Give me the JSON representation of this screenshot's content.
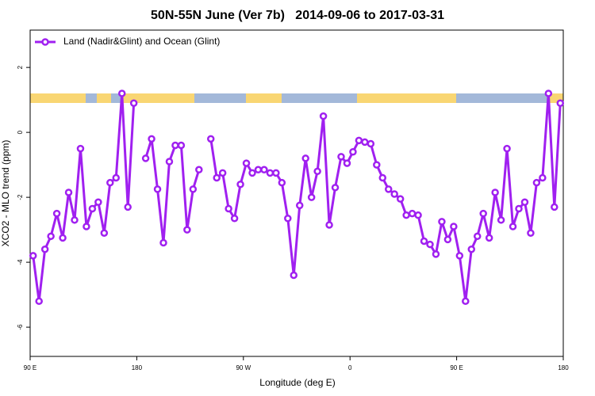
{
  "chart_data": {
    "type": "line",
    "title": "50N-55N June (Ver 7b)   2014-09-06 to 2017-03-31",
    "xlabel": "Longitude (deg E)",
    "ylabel": "XCO2 - MLO trend (ppm)",
    "x": [
      92.5,
      97.5,
      102.5,
      107.5,
      112.5,
      117.5,
      122.5,
      127.5,
      132.5,
      137.5,
      142.5,
      147.5,
      152.5,
      157.5,
      162.5,
      167.5,
      172.5,
      177.5,
      182.5,
      187.5,
      192.5,
      197.5,
      202.5,
      207.5,
      212.5,
      217.5,
      222.5,
      227.5,
      232.5,
      237.5,
      242.5,
      247.5,
      252.5,
      257.5,
      262.5,
      267.5,
      272.5,
      277.5,
      282.5,
      287.5,
      292.5,
      297.5,
      302.5,
      307.5,
      312.5,
      317.5,
      322.5,
      327.5,
      332.5,
      337.5,
      342.5,
      347.5,
      352.5,
      357.5,
      362.5,
      367.5,
      372.5,
      377.5,
      382.5,
      387.5,
      392.5,
      397.5,
      402.5,
      407.5,
      412.5,
      417.5,
      422.5,
      427.5,
      432.5,
      437.5,
      442.5,
      447.5,
      452.5,
      457.5,
      462.5,
      467.5,
      472.5,
      477.5,
      482.5,
      487.5,
      492.5,
      497.5,
      502.5,
      507.5,
      512.5,
      517.5,
      522.5,
      527.5,
      532.5,
      537.5
    ],
    "series": [
      {
        "name": "Land (Nadir&Glint) and Ocean (Glint)",
        "color": "#a020f0",
        "values": [
          -3.8,
          -5.2,
          -3.6,
          -3.2,
          -2.5,
          -3.25,
          -1.85,
          -2.7,
          -0.5,
          -2.9,
          -2.35,
          -2.15,
          -3.1,
          -1.55,
          -1.4,
          1.2,
          -2.3,
          0.9,
          null,
          -0.8,
          -0.2,
          -1.75,
          -3.4,
          -0.9,
          -0.4,
          -0.4,
          -3.0,
          -1.75,
          -1.15,
          null,
          -0.2,
          -1.4,
          -1.25,
          -2.35,
          -2.65,
          -1.6,
          -0.95,
          -1.25,
          -1.15,
          -1.15,
          -1.25,
          -1.25,
          -1.55,
          -2.65,
          -4.4,
          -2.25,
          -0.8,
          -2.0,
          -1.2,
          0.5,
          -2.85,
          -1.7,
          -0.75,
          -0.95,
          -0.6,
          -0.25,
          -0.3,
          -0.35,
          -1.0,
          -1.4,
          -1.75,
          -1.9,
          -2.05,
          -2.55,
          -2.5,
          -2.55,
          -3.35,
          -3.45,
          -3.75,
          -2.75,
          -3.3,
          -2.9,
          -3.8,
          -5.2,
          -3.6,
          -3.2,
          -2.5,
          -3.25,
          -1.85,
          -2.7,
          -0.5,
          -2.9,
          -2.35,
          -2.15,
          -3.1,
          -1.55,
          -1.4,
          1.2,
          -2.3,
          0.9
        ]
      }
    ],
    "xlim": [
      90,
      540
    ],
    "xticks": [
      {
        "value": 90,
        "label": "90 E"
      },
      180,
      {
        "value": 270,
        "label": "90 W"
      },
      {
        "value": 360,
        "label": "0"
      },
      {
        "value": 450,
        "label": "90 E"
      },
      {
        "value": 540,
        "label": "180"
      }
    ],
    "ylim": [
      -6.9,
      3.15
    ],
    "yticks": [
      -6,
      -4,
      -2,
      0,
      2
    ],
    "legend": "top-left"
  }
}
